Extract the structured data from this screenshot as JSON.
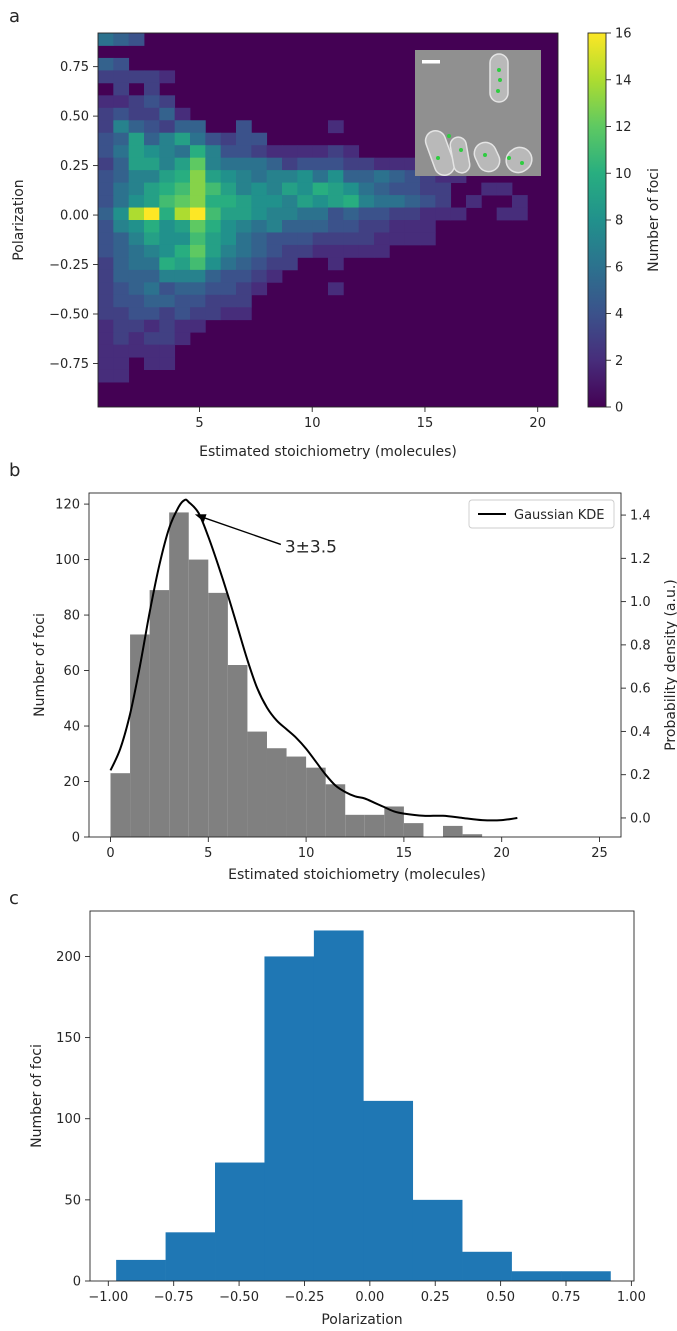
{
  "panels": {
    "a": "a",
    "b": "b",
    "c": "c"
  },
  "chart_data": [
    {
      "panel": "a",
      "type": "heatmap",
      "xlabel": "Estimated stoichiometry (molecules)",
      "ylabel": "Polarization",
      "colorbar_label": "Number of foci",
      "x_ticks": [
        5,
        10,
        15,
        20
      ],
      "y_ticks": [
        0.75,
        0.5,
        0.25,
        0.0,
        -0.25,
        -0.5,
        -0.75
      ],
      "y_tick_labels": [
        "0.75",
        "0.50",
        "0.25",
        "0.00",
        "−0.25",
        "−0.50",
        "−0.75"
      ],
      "colorbar_ticks": [
        0,
        2,
        4,
        6,
        8,
        10,
        12,
        14,
        16
      ],
      "xlim": [
        0.5,
        20.9
      ],
      "ylim": [
        -0.97,
        0.92
      ],
      "clim": [
        0,
        16
      ],
      "colormap": "viridis",
      "x_edges_start": 0.5,
      "x_bin_width": 0.68,
      "n_x_bins": 30,
      "y_edges_start": -0.97,
      "y_bin_width": 0.063,
      "n_y_bins": 30,
      "counts": [
        [
          6,
          5,
          4,
          0,
          0,
          0,
          0,
          0,
          0,
          0,
          0,
          0,
          0,
          0,
          0,
          0,
          0,
          0,
          0,
          0,
          0,
          0,
          0,
          0,
          0,
          0,
          0,
          0,
          0,
          0
        ],
        [
          0,
          0,
          0,
          0,
          0,
          0,
          0,
          0,
          0,
          0,
          0,
          0,
          0,
          0,
          0,
          0,
          0,
          0,
          0,
          0,
          0,
          0,
          0,
          0,
          0,
          0,
          0,
          0,
          0,
          0
        ],
        [
          5,
          4,
          0,
          0,
          0,
          0,
          0,
          0,
          0,
          0,
          0,
          0,
          0,
          0,
          0,
          0,
          0,
          0,
          0,
          0,
          0,
          0,
          0,
          0,
          0,
          0,
          0,
          0,
          0,
          0
        ],
        [
          3,
          3,
          3,
          3,
          2,
          0,
          0,
          0,
          0,
          0,
          0,
          0,
          0,
          0,
          0,
          0,
          0,
          0,
          0,
          0,
          0,
          0,
          0,
          0,
          0,
          0,
          0,
          0,
          0,
          0
        ],
        [
          0,
          3,
          0,
          3,
          0,
          0,
          0,
          0,
          0,
          0,
          0,
          0,
          0,
          0,
          0,
          0,
          0,
          0,
          0,
          0,
          0,
          0,
          0,
          0,
          0,
          0,
          0,
          0,
          0,
          0
        ],
        [
          2,
          2,
          3,
          4,
          3,
          0,
          0,
          0,
          0,
          0,
          0,
          0,
          0,
          0,
          0,
          0,
          0,
          0,
          0,
          0,
          0,
          0,
          0,
          0,
          0,
          0,
          0,
          0,
          0,
          0
        ],
        [
          3,
          4,
          3,
          3,
          5,
          2,
          0,
          0,
          0,
          0,
          0,
          0,
          0,
          0,
          0,
          0,
          0,
          0,
          0,
          0,
          0,
          0,
          0,
          0,
          0,
          0,
          0,
          0,
          0,
          0
        ],
        [
          3,
          7,
          5,
          4,
          3,
          5,
          5,
          0,
          0,
          4,
          0,
          0,
          0,
          0,
          0,
          2,
          0,
          0,
          0,
          0,
          0,
          0,
          0,
          0,
          0,
          0,
          0,
          0,
          0,
          0
        ],
        [
          4,
          5,
          9,
          5,
          7,
          9,
          6,
          4,
          3,
          4,
          4,
          0,
          0,
          0,
          0,
          0,
          0,
          0,
          0,
          0,
          0,
          0,
          0,
          0,
          0,
          0,
          0,
          0,
          0,
          0
        ],
        [
          4,
          6,
          9,
          8,
          7,
          6,
          10,
          7,
          4,
          4,
          3,
          2,
          2,
          2,
          2,
          3,
          2,
          0,
          0,
          0,
          0,
          0,
          0,
          0,
          0,
          0,
          0,
          0,
          0,
          0
        ],
        [
          3,
          5,
          9,
          9,
          7,
          9,
          12,
          7,
          6,
          6,
          6,
          5,
          3,
          4,
          4,
          4,
          3,
          3,
          2,
          2,
          2,
          2,
          0,
          0,
          0,
          0,
          0,
          0,
          0,
          0
        ],
        [
          4,
          5,
          7,
          7,
          9,
          10,
          13,
          9,
          8,
          7,
          6,
          7,
          7,
          8,
          6,
          8,
          5,
          5,
          6,
          5,
          4,
          3,
          2,
          2,
          0,
          0,
          0,
          0,
          0,
          0
        ],
        [
          4,
          6,
          7,
          9,
          10,
          11,
          13,
          11,
          9,
          7,
          8,
          7,
          9,
          8,
          10,
          9,
          8,
          6,
          5,
          4,
          4,
          3,
          3,
          0,
          0,
          2,
          2,
          0,
          0,
          0
        ],
        [
          4,
          6,
          8,
          9,
          11,
          12,
          13,
          10,
          10,
          9,
          8,
          8,
          7,
          9,
          8,
          9,
          10,
          7,
          6,
          6,
          5,
          4,
          3,
          0,
          2,
          0,
          0,
          2,
          0,
          0
        ],
        [
          5,
          8,
          14,
          16,
          10,
          14,
          16,
          11,
          9,
          9,
          8,
          7,
          7,
          6,
          6,
          4,
          5,
          4,
          4,
          3,
          3,
          2,
          2,
          2,
          0,
          0,
          2,
          2,
          0,
          0
        ],
        [
          4,
          7,
          8,
          10,
          8,
          9,
          12,
          10,
          8,
          7,
          6,
          7,
          5,
          5,
          5,
          4,
          4,
          3,
          3,
          2,
          2,
          2,
          0,
          0,
          0,
          0,
          0,
          0,
          0,
          0
        ],
        [
          4,
          5,
          7,
          9,
          8,
          8,
          11,
          9,
          8,
          6,
          5,
          4,
          4,
          4,
          3,
          3,
          3,
          3,
          2,
          2,
          2,
          2,
          0,
          0,
          0,
          0,
          0,
          0,
          0,
          0
        ],
        [
          4,
          5,
          6,
          7,
          8,
          10,
          12,
          9,
          7,
          6,
          5,
          4,
          3,
          3,
          2,
          2,
          2,
          2,
          2,
          0,
          0,
          0,
          0,
          0,
          0,
          0,
          0,
          0,
          0,
          0
        ],
        [
          3,
          5,
          6,
          6,
          10,
          9,
          11,
          8,
          6,
          5,
          4,
          3,
          3,
          0,
          0,
          2,
          0,
          0,
          0,
          0,
          0,
          0,
          0,
          0,
          0,
          0,
          0,
          0,
          0,
          0
        ],
        [
          3,
          5,
          5,
          5,
          7,
          7,
          7,
          5,
          4,
          4,
          3,
          2,
          0,
          0,
          0,
          0,
          0,
          0,
          0,
          0,
          0,
          0,
          0,
          0,
          0,
          0,
          0,
          0,
          0,
          0
        ],
        [
          3,
          4,
          5,
          6,
          4,
          5,
          5,
          4,
          4,
          3,
          2,
          0,
          0,
          0,
          0,
          2,
          0,
          0,
          0,
          0,
          0,
          0,
          0,
          0,
          0,
          0,
          0,
          0,
          0,
          0
        ],
        [
          3,
          4,
          4,
          5,
          5,
          4,
          4,
          3,
          3,
          3,
          0,
          0,
          0,
          0,
          0,
          0,
          0,
          0,
          0,
          0,
          0,
          0,
          0,
          0,
          0,
          0,
          0,
          0,
          0,
          0
        ],
        [
          3,
          3,
          4,
          4,
          3,
          4,
          3,
          3,
          2,
          2,
          0,
          0,
          0,
          0,
          0,
          0,
          0,
          0,
          0,
          0,
          0,
          0,
          0,
          0,
          0,
          0,
          0,
          0,
          0,
          0
        ],
        [
          2,
          3,
          3,
          2,
          3,
          2,
          2,
          0,
          0,
          0,
          0,
          0,
          0,
          0,
          0,
          0,
          0,
          0,
          0,
          0,
          0,
          0,
          0,
          0,
          0,
          0,
          0,
          0,
          0,
          0
        ],
        [
          2,
          3,
          2,
          3,
          3,
          2,
          0,
          0,
          0,
          0,
          0,
          0,
          0,
          0,
          0,
          0,
          0,
          0,
          0,
          0,
          0,
          0,
          0,
          0,
          0,
          0,
          0,
          0,
          0,
          0
        ],
        [
          2,
          2,
          2,
          2,
          2,
          0,
          0,
          0,
          0,
          0,
          0,
          0,
          0,
          0,
          0,
          0,
          0,
          0,
          0,
          0,
          0,
          0,
          0,
          0,
          0,
          0,
          0,
          0,
          0,
          0
        ],
        [
          2,
          2,
          0,
          2,
          2,
          0,
          0,
          0,
          0,
          0,
          0,
          0,
          0,
          0,
          0,
          0,
          0,
          0,
          0,
          0,
          0,
          0,
          0,
          0,
          0,
          0,
          0,
          0,
          0,
          0
        ],
        [
          2,
          2,
          0,
          0,
          0,
          0,
          0,
          0,
          0,
          0,
          0,
          0,
          0,
          0,
          0,
          0,
          0,
          0,
          0,
          0,
          0,
          0,
          0,
          0,
          0,
          0,
          0,
          0,
          0,
          0
        ],
        [
          0,
          0,
          0,
          0,
          0,
          0,
          0,
          0,
          0,
          0,
          0,
          0,
          0,
          0,
          0,
          0,
          0,
          0,
          0,
          0,
          0,
          0,
          0,
          0,
          0,
          0,
          0,
          0,
          0,
          0
        ],
        [
          0,
          0,
          0,
          0,
          0,
          0,
          0,
          0,
          0,
          0,
          0,
          0,
          0,
          0,
          0,
          0,
          0,
          0,
          0,
          0,
          0,
          0,
          0,
          0,
          0,
          0,
          0,
          0,
          0,
          0
        ]
      ],
      "inset": "fluorescence micrograph of cells with detected foci and scale bar"
    },
    {
      "panel": "b",
      "type": "bar",
      "xlabel": "Estimated stoichiometry (molecules)",
      "ylabel": "Number of foci",
      "y2label": "Probability density (a.u.)",
      "x_ticks": [
        0,
        5,
        10,
        15,
        20,
        25
      ],
      "y_ticks": [
        0,
        20,
        40,
        60,
        80,
        100,
        120
      ],
      "y2_ticks": [
        0.0,
        0.2,
        0.4,
        0.6,
        0.8,
        1.0,
        1.2,
        1.4
      ],
      "xlim": [
        -1.1,
        26.1
      ],
      "ylim": [
        0,
        124
      ],
      "y2lim": [
        -0.088,
        1.502
      ],
      "bar_color": "#808080",
      "bin_edges": [
        0,
        1,
        2,
        3,
        4,
        5,
        6,
        7,
        8,
        9,
        10,
        11,
        12,
        13,
        14,
        15,
        16,
        17,
        18,
        19,
        20,
        21
      ],
      "values": [
        23,
        73,
        89,
        117,
        100,
        88,
        62,
        38,
        32,
        29,
        25,
        19,
        8,
        8,
        11,
        5,
        0,
        4,
        1,
        0,
        0,
        1
      ],
      "kde": {
        "name": "Gaussian KDE",
        "x": [
          0,
          0.5,
          1,
          1.5,
          2,
          2.5,
          3,
          3.5,
          3.8,
          4,
          4.5,
          5,
          5.5,
          6,
          6.5,
          7,
          7.5,
          8,
          8.5,
          9,
          9.5,
          10,
          10.5,
          11,
          11.5,
          12,
          12.5,
          13,
          13.5,
          14,
          14.5,
          15,
          16,
          17,
          18,
          19,
          20,
          20.8
        ],
        "y": [
          0.22,
          0.32,
          0.48,
          0.7,
          0.95,
          1.17,
          1.34,
          1.44,
          1.47,
          1.46,
          1.41,
          1.3,
          1.17,
          1.03,
          0.88,
          0.73,
          0.6,
          0.51,
          0.45,
          0.41,
          0.37,
          0.32,
          0.26,
          0.2,
          0.15,
          0.12,
          0.1,
          0.09,
          0.07,
          0.05,
          0.03,
          0.02,
          0.01,
          0.01,
          0.0,
          -0.01,
          -0.01,
          0.0
        ]
      },
      "annotation": {
        "text": "3±3.5",
        "x": 3.8,
        "y": 117
      }
    },
    {
      "panel": "c",
      "type": "bar",
      "xlabel": "Polarization",
      "ylabel": "Number of foci",
      "x_ticks": [
        -1.0,
        -0.75,
        -0.5,
        -0.25,
        0.0,
        0.25,
        0.5,
        0.75,
        1.0
      ],
      "x_tick_labels": [
        "−1.00",
        "−0.75",
        "−0.50",
        "−0.25",
        "0.00",
        "0.25",
        "0.50",
        "0.75",
        "1.00"
      ],
      "y_ticks": [
        0,
        50,
        100,
        150,
        200
      ],
      "xlim": [
        -1.07,
        1.01
      ],
      "ylim": [
        0,
        228
      ],
      "bar_color": "#1f77b4",
      "bin_edges": [
        -0.97,
        -0.781,
        -0.592,
        -0.403,
        -0.214,
        -0.025,
        0.164,
        0.353,
        0.542,
        0.731,
        0.92
      ],
      "values": [
        13,
        30,
        73,
        200,
        216,
        111,
        50,
        18,
        6,
        6
      ]
    }
  ]
}
